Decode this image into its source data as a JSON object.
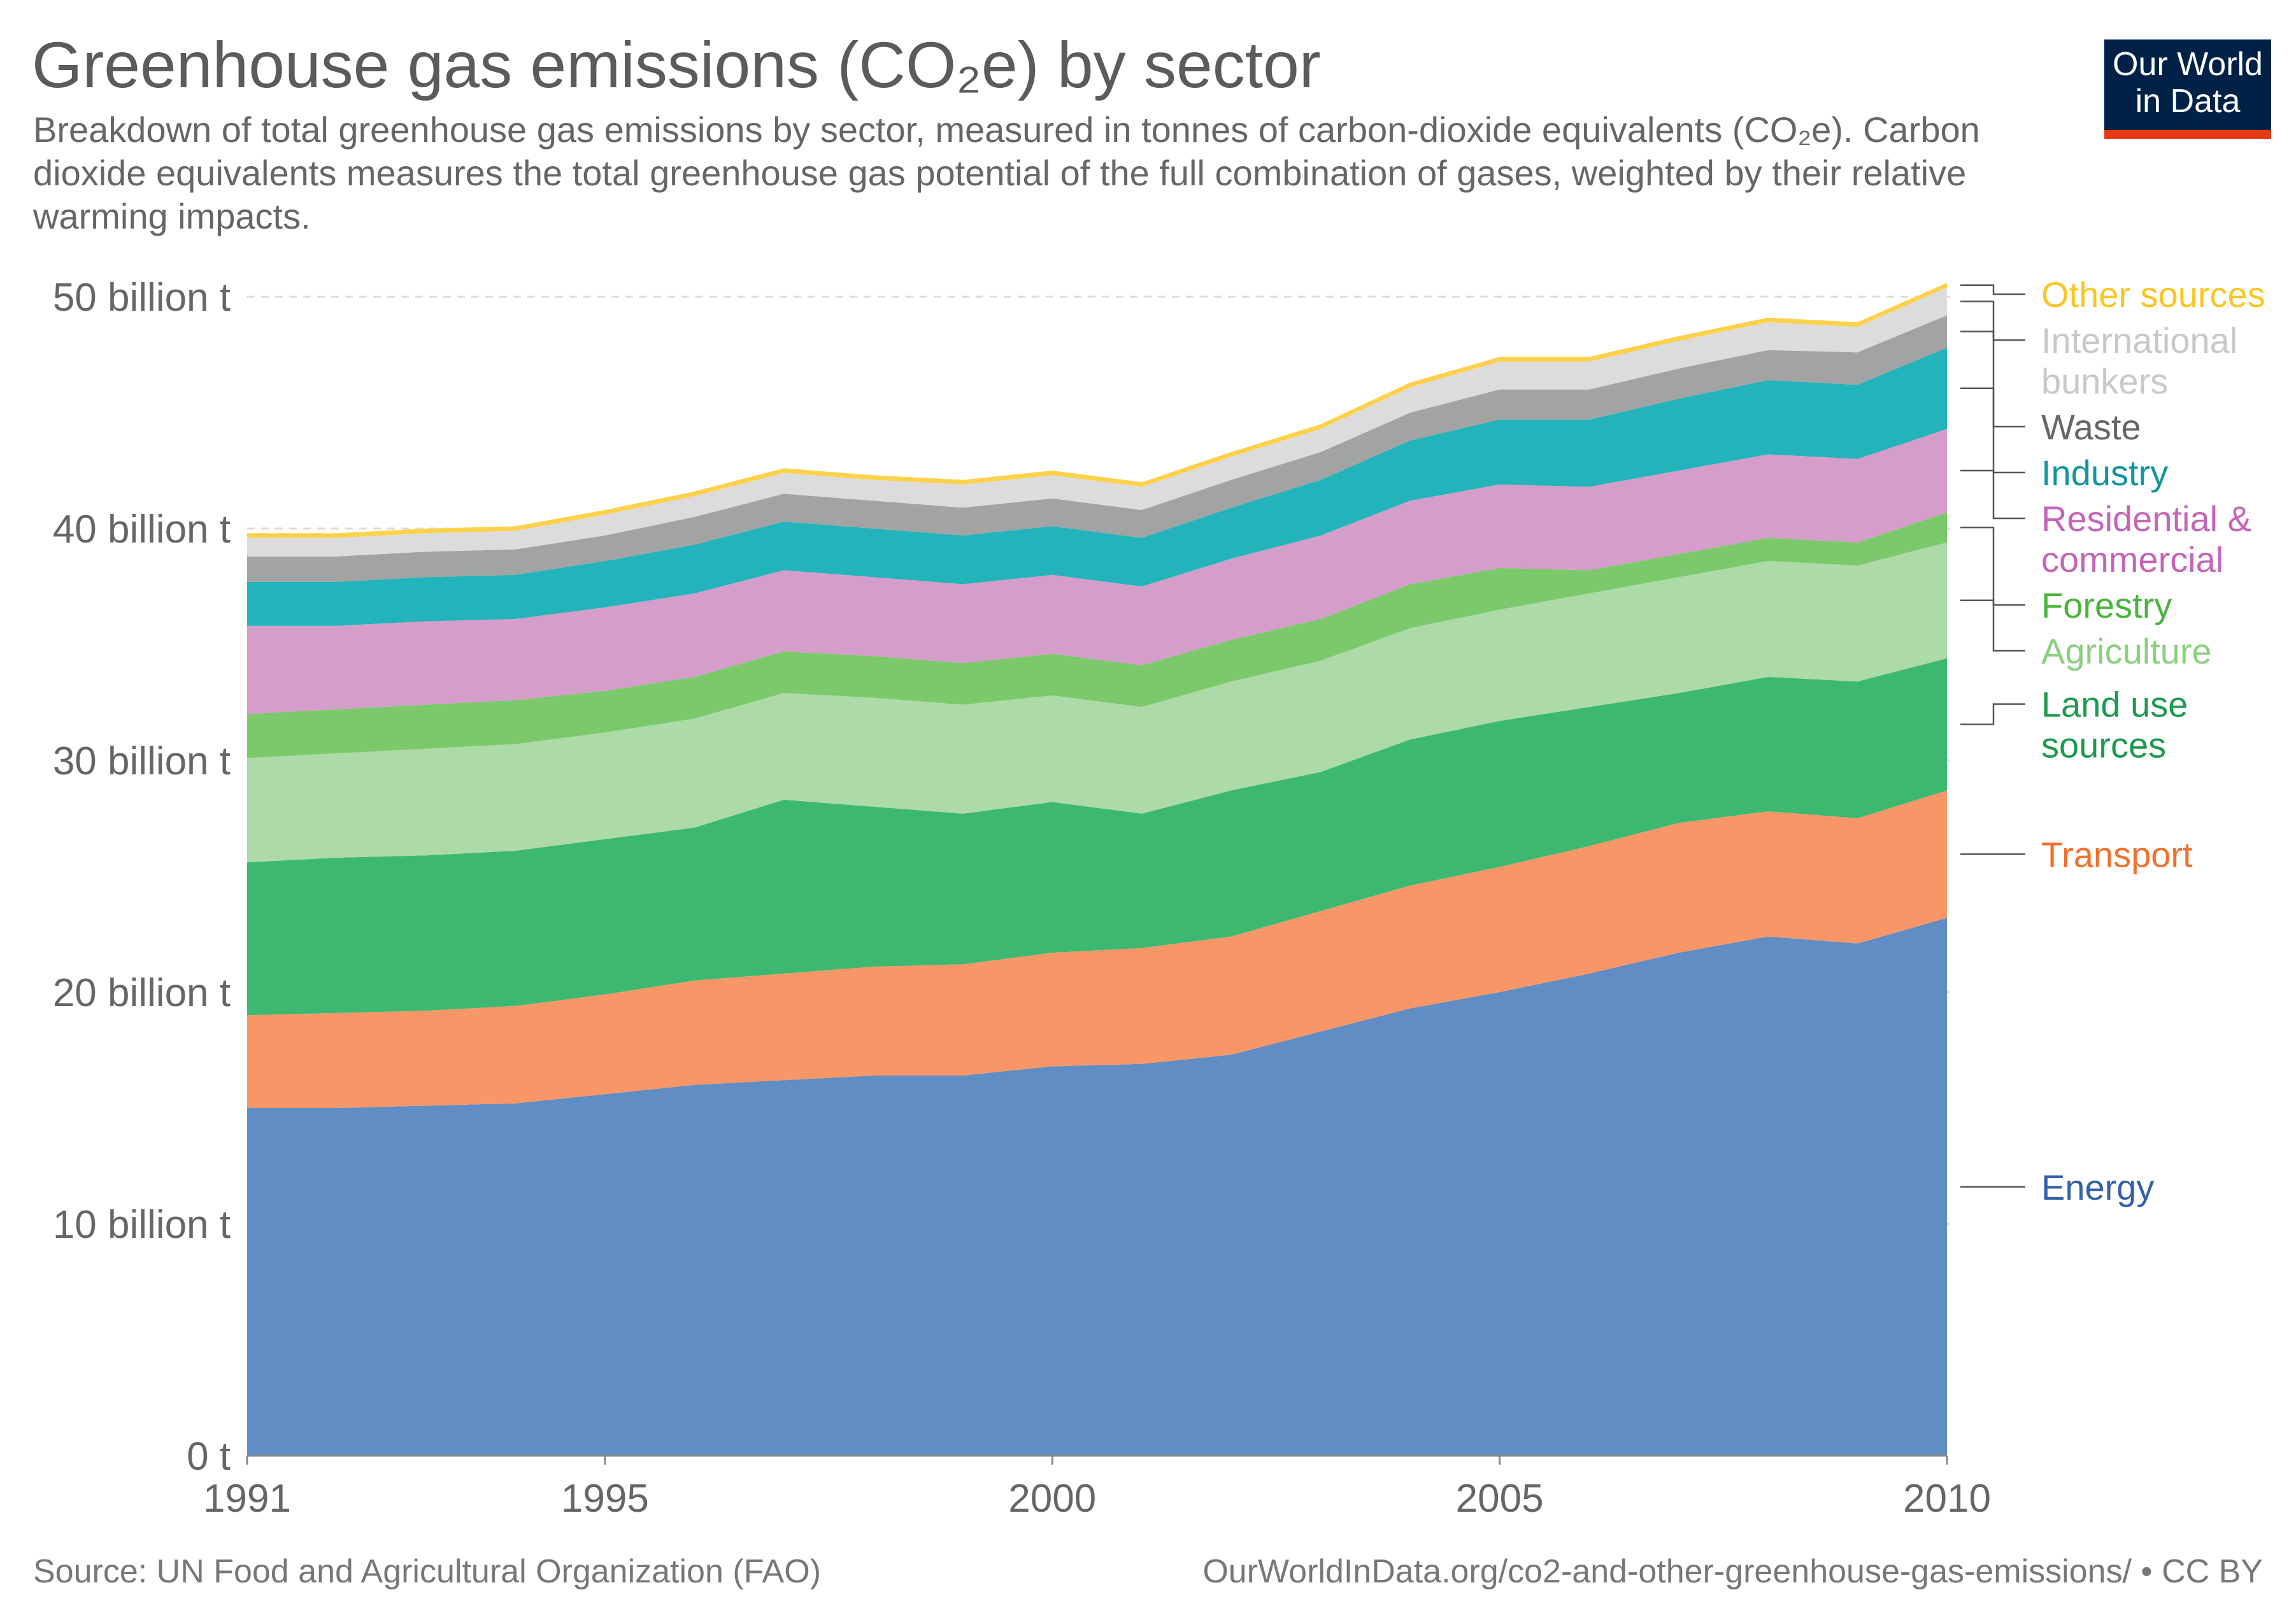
{
  "header": {
    "title": "Greenhouse gas emissions (CO₂e) by sector",
    "subtitle": "Breakdown of total greenhouse gas emissions by sector, measured in tonnes of carbon-dioxide equivalents (CO₂e). Carbon dioxide equivalents measures the total greenhouse gas potential of the full combination of gases, weighted by their relative warming impacts.",
    "logo_line1": "Our World",
    "logo_line2": "in Data"
  },
  "footer": {
    "source": "Source: UN Food and Agricultural Organization (FAO)",
    "credit": "OurWorldInData.org/co2-and-other-greenhouse-gas-emissions/ • CC BY"
  },
  "colors": {
    "logo_bg": "#002147",
    "logo_bar": "#e63912"
  },
  "chart_data": {
    "type": "area",
    "stacked": true,
    "title": "Greenhouse gas emissions (CO₂e) by sector",
    "ylabel": "",
    "xlabel": "",
    "ylim": [
      0,
      50
    ],
    "yticks": [
      0,
      10,
      20,
      30,
      40,
      50
    ],
    "ytick_labels": [
      "0 t",
      "10 billion t",
      "20 billion t",
      "30 billion t",
      "40 billion t",
      "50 billion t"
    ],
    "xticks": [
      1991,
      1995,
      2000,
      2005,
      2010
    ],
    "xtick_labels": [
      "1991",
      "1995",
      "2000",
      "2005",
      "2010"
    ],
    "grid": "horizontal dashed",
    "units": "billion t CO₂e",
    "x": [
      1991,
      1992,
      1993,
      1994,
      1995,
      1996,
      1997,
      1998,
      1999,
      2000,
      2001,
      2002,
      2003,
      2004,
      2005,
      2006,
      2007,
      2008,
      2009,
      2010
    ],
    "series": [
      {
        "name": "Energy",
        "label_lines": [
          "Energy"
        ],
        "color": "#608dc4",
        "label_color": "#3360a9",
        "values": [
          15.0,
          15.0,
          15.1,
          15.2,
          15.6,
          16.0,
          16.2,
          16.4,
          16.4,
          16.8,
          16.9,
          17.3,
          18.3,
          19.3,
          20.0,
          20.8,
          21.7,
          22.4,
          22.1,
          23.2
        ]
      },
      {
        "name": "Transport",
        "label_lines": [
          "Transport"
        ],
        "color": "#f99668",
        "label_color": "#f36f2a",
        "values": [
          4.0,
          4.1,
          4.1,
          4.2,
          4.3,
          4.5,
          4.6,
          4.7,
          4.8,
          4.9,
          5.0,
          5.1,
          5.2,
          5.3,
          5.4,
          5.5,
          5.6,
          5.4,
          5.4,
          5.5
        ]
      },
      {
        "name": "Land use sources",
        "label_lines": [
          "Land use",
          "sources"
        ],
        "color": "#3db870",
        "label_color": "#1c9a4f",
        "values": [
          6.6,
          6.7,
          6.7,
          6.7,
          6.7,
          6.6,
          7.5,
          6.9,
          6.5,
          6.5,
          5.8,
          6.3,
          6.0,
          6.3,
          6.3,
          6.0,
          5.6,
          5.8,
          5.9,
          5.7
        ]
      },
      {
        "name": "Agriculture",
        "label_lines": [
          "Agriculture"
        ],
        "color": "#acdba7",
        "label_color": "#8bd07f",
        "values": [
          4.5,
          4.5,
          4.6,
          4.6,
          4.6,
          4.7,
          4.6,
          4.7,
          4.7,
          4.6,
          4.6,
          4.7,
          4.8,
          4.8,
          4.8,
          4.9,
          5.0,
          5.0,
          5.0,
          5.0
        ]
      },
      {
        "name": "Forestry",
        "label_lines": [
          "Forestry"
        ],
        "color": "#7cc96c",
        "label_color": "#4ab43c",
        "values": [
          1.9,
          1.9,
          1.9,
          1.9,
          1.8,
          1.8,
          1.8,
          1.8,
          1.8,
          1.8,
          1.8,
          1.8,
          1.8,
          1.9,
          1.8,
          1.0,
          1.0,
          1.0,
          1.0,
          1.3
        ]
      },
      {
        "name": "Residential & commercial",
        "label_lines": [
          "Residential &",
          "commercial"
        ],
        "color": "#d59dca",
        "label_color": "#c564b7",
        "values": [
          3.8,
          3.6,
          3.6,
          3.5,
          3.6,
          3.6,
          3.5,
          3.4,
          3.4,
          3.4,
          3.4,
          3.5,
          3.6,
          3.6,
          3.6,
          3.6,
          3.6,
          3.6,
          3.6,
          3.6
        ]
      },
      {
        "name": "Industry",
        "label_lines": [
          "Industry"
        ],
        "color": "#22b3bb",
        "label_color": "#12959d",
        "values": [
          1.9,
          1.9,
          1.9,
          1.9,
          2.0,
          2.1,
          2.1,
          2.1,
          2.1,
          2.1,
          2.1,
          2.2,
          2.4,
          2.6,
          2.8,
          2.9,
          3.1,
          3.2,
          3.2,
          3.5
        ]
      },
      {
        "name": "Waste",
        "label_lines": [
          "Waste"
        ],
        "color": "#a2a3a3",
        "label_color": "#666666",
        "values": [
          1.1,
          1.1,
          1.1,
          1.1,
          1.1,
          1.2,
          1.2,
          1.2,
          1.2,
          1.2,
          1.2,
          1.2,
          1.2,
          1.2,
          1.3,
          1.3,
          1.3,
          1.3,
          1.4,
          1.4
        ]
      },
      {
        "name": "International bunkers",
        "label_lines": [
          "International",
          "bunkers"
        ],
        "color": "#dcdcdc",
        "label_color": "#c8c8c8",
        "values": [
          0.8,
          0.8,
          0.8,
          0.8,
          0.9,
          0.9,
          0.9,
          0.9,
          1.0,
          1.0,
          1.0,
          1.0,
          1.0,
          1.1,
          1.2,
          1.2,
          1.2,
          1.2,
          1.1,
          1.2
        ]
      },
      {
        "name": "Other sources",
        "label_lines": [
          "Other sources"
        ],
        "color": "#fdd14a",
        "label_color": "#fcc521",
        "values": [
          0.2,
          0.2,
          0.2,
          0.2,
          0.2,
          0.2,
          0.2,
          0.2,
          0.2,
          0.2,
          0.2,
          0.2,
          0.2,
          0.2,
          0.2,
          0.2,
          0.2,
          0.2,
          0.2,
          0.2
        ]
      }
    ]
  }
}
